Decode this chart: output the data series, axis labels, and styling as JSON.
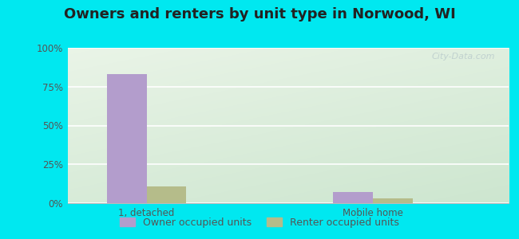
{
  "title": "Owners and renters by unit type in Norwood, WI",
  "categories": [
    "1, detached",
    "Mobile home"
  ],
  "owner_values": [
    83,
    7
  ],
  "renter_values": [
    11,
    3
  ],
  "owner_color": "#b39dcc",
  "renter_color": "#b5bc8a",
  "outer_bg": "#00e8f0",
  "plot_bg_left_bottom": "#c8e8c0",
  "plot_bg_right_top": "#f0f8f0",
  "ylim": [
    0,
    100
  ],
  "yticks": [
    0,
    25,
    50,
    75,
    100
  ],
  "ytick_labels": [
    "0%",
    "25%",
    "50%",
    "75%",
    "100%"
  ],
  "legend_owner": "Owner occupied units",
  "legend_renter": "Renter occupied units",
  "bar_width": 0.35,
  "group_positions": [
    1,
    3
  ],
  "watermark": "City-Data.com",
  "title_fontsize": 13,
  "axis_fontsize": 8.5,
  "legend_fontsize": 9,
  "tick_color": "#555555",
  "title_color": "#222222"
}
